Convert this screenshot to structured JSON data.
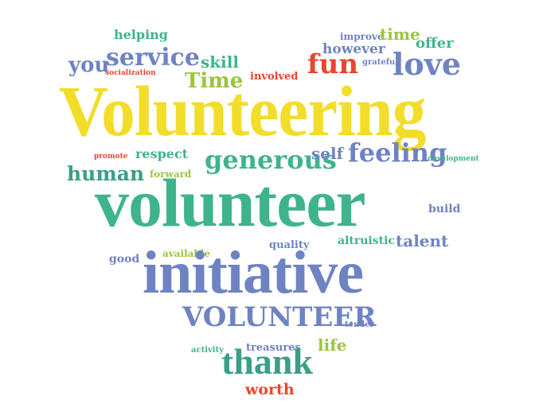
{
  "colors": {
    "yellow": "#f2dd2a",
    "green": "#3fb48a",
    "blue": "#6f83c2",
    "lime": "#9bc53d",
    "red": "#e8462e",
    "teal": "#3a9f86"
  },
  "words": [
    {
      "text": "helping",
      "color": "#3fb48a"
    },
    {
      "text": "improve",
      "color": "#6f83c2"
    },
    {
      "text": "time",
      "color": "#9bc53d"
    },
    {
      "text": "however",
      "color": "#6f83c2"
    },
    {
      "text": "offer",
      "color": "#3fb48a"
    },
    {
      "text": "you",
      "color": "#6f83c2"
    },
    {
      "text": "service",
      "color": "#6f83c2"
    },
    {
      "text": "skill",
      "color": "#3fb48a"
    },
    {
      "text": "fun",
      "color": "#e8462e"
    },
    {
      "text": "grateful",
      "color": "#6f83c2"
    },
    {
      "text": "love",
      "color": "#6f83c2"
    },
    {
      "text": "socialization",
      "color": "#e8462e"
    },
    {
      "text": "Time",
      "color": "#9bc53d"
    },
    {
      "text": "involved",
      "color": "#e8462e"
    },
    {
      "text": "Volunteering",
      "color": "#f2dd2a"
    },
    {
      "text": "promote",
      "color": "#e8462e"
    },
    {
      "text": "respect",
      "color": "#3fb48a"
    },
    {
      "text": "generous",
      "color": "#3fb48a"
    },
    {
      "text": "self",
      "color": "#6f83c2"
    },
    {
      "text": "feeling",
      "color": "#6f83c2"
    },
    {
      "text": "development",
      "color": "#3fb48a"
    },
    {
      "text": "human",
      "color": "#3a9f86"
    },
    {
      "text": "forward",
      "color": "#9bc53d"
    },
    {
      "text": "volunteer",
      "color": "#3fb48a"
    },
    {
      "text": "build",
      "color": "#6f83c2"
    },
    {
      "text": "good",
      "color": "#6f83c2"
    },
    {
      "text": "available",
      "color": "#9bc53d"
    },
    {
      "text": "quality",
      "color": "#6f83c2"
    },
    {
      "text": "altruistic",
      "color": "#3fb48a"
    },
    {
      "text": "talent",
      "color": "#6f83c2"
    },
    {
      "text": "initiative",
      "color": "#6f83c2"
    },
    {
      "text": "VOLUNTEER",
      "color": "#6f83c2"
    },
    {
      "text": "tender",
      "color": "#6f83c2"
    },
    {
      "text": "activity",
      "color": "#3fb48a"
    },
    {
      "text": "treasures",
      "color": "#6f83c2"
    },
    {
      "text": "life",
      "color": "#9bc53d"
    },
    {
      "text": "thank",
      "color": "#3a9f86"
    },
    {
      "text": "worth",
      "color": "#e8462e"
    }
  ]
}
